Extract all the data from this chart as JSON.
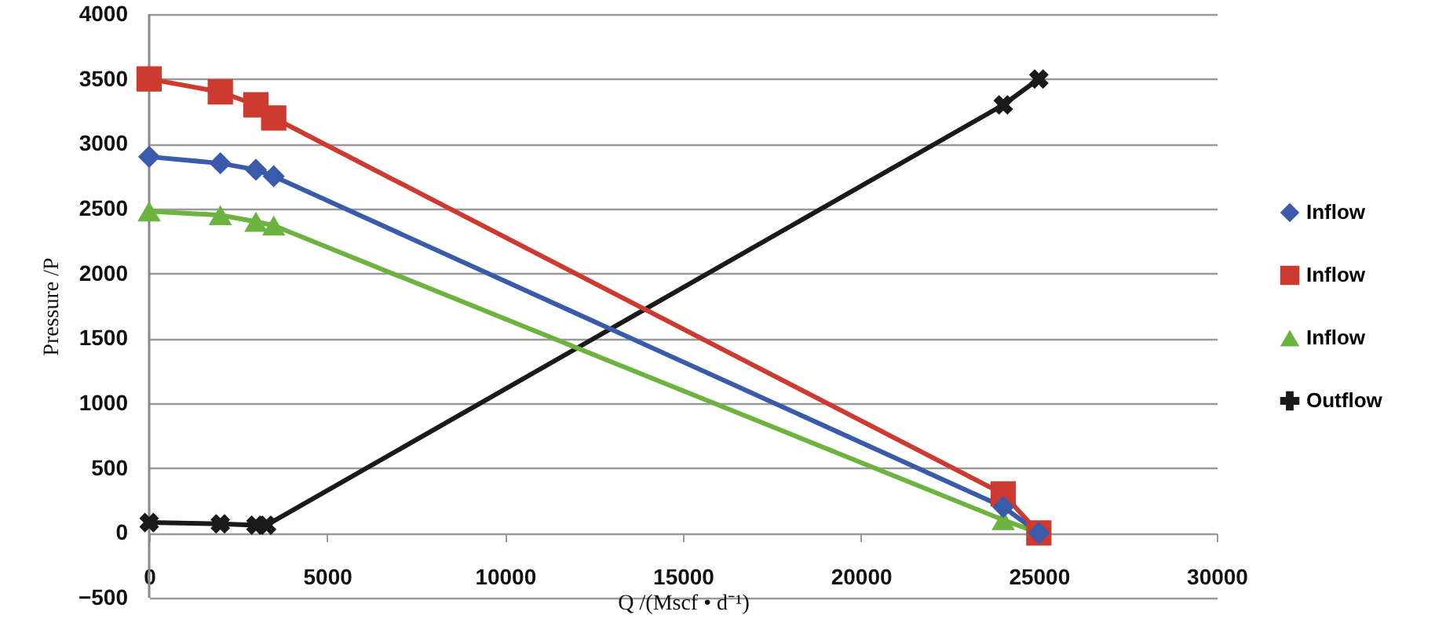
{
  "chart_data": {
    "type": "line",
    "xlabel": "Q /(Mscf • d⁻¹)",
    "ylabel": "Pressure /P",
    "xlim": [
      0,
      30000
    ],
    "xticks": [
      0,
      5000,
      10000,
      15000,
      20000,
      25000,
      30000
    ],
    "ylim": [
      -500,
      4000
    ],
    "yticks": [
      -500,
      0,
      500,
      1000,
      1500,
      2000,
      2500,
      3000,
      3500,
      4000
    ],
    "grid": "y",
    "legend": "right",
    "series": [
      {
        "name": "Inflow",
        "color": "#3a5ba9",
        "marker": "diamond",
        "x": [
          0,
          2000,
          3000,
          3500,
          24000,
          25000
        ],
        "values": [
          2900,
          2850,
          2800,
          2750,
          200,
          0
        ]
      },
      {
        "name": "Inflow",
        "color": "#cc3a30",
        "marker": "square",
        "x": [
          0,
          2000,
          3000,
          3500,
          24000,
          25000
        ],
        "values": [
          3500,
          3400,
          3300,
          3200,
          300,
          0
        ]
      },
      {
        "name": "Inflow",
        "color": "#6cb33f",
        "marker": "triangle",
        "x": [
          0,
          2000,
          3000,
          3500,
          24000,
          25000
        ],
        "values": [
          2480,
          2450,
          2400,
          2370,
          100,
          0
        ]
      },
      {
        "name": "Outflow",
        "color": "#1a1a1a",
        "marker": "cross",
        "x": [
          0,
          2000,
          3000,
          3300,
          24000,
          25000
        ],
        "values": [
          80,
          70,
          60,
          60,
          3300,
          3500
        ]
      }
    ]
  }
}
